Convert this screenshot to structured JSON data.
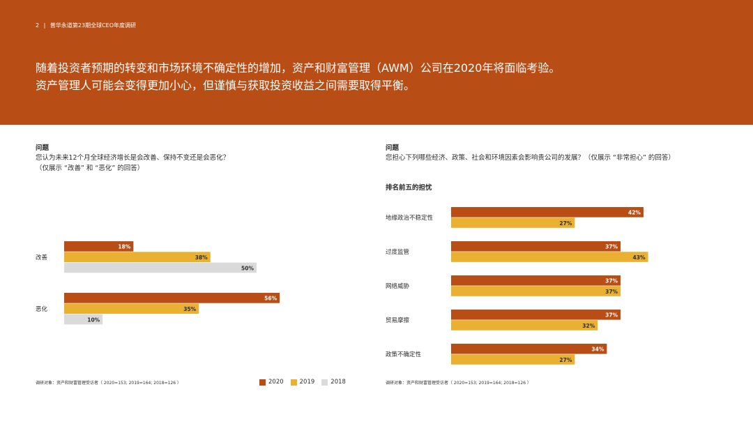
{
  "header": {
    "page_number": "2",
    "separator": "|",
    "report_title": "普华永道第23期全球CEO年度调研",
    "headline_line1": "随着投资者预期的转变和市场环境不确定性的增加，资产和财富管理（AWM）公司在2020年将面临考验。",
    "headline_line2": "资产管理人可能会变得更加小心，但谨慎与获取投资收益之间需要取得平衡。"
  },
  "left_panel": {
    "question_label": "问题",
    "question_line1": "您认为未来12个月全球经济增长是会改善、保持不变还是会恶化？",
    "question_line2": "（仅展示 “改善” 和 “恶化” 的回答）",
    "footnote": "调研对象：资产和财富管理受访者（ 2020=153; 2019=164; 2018=126 ）"
  },
  "right_panel": {
    "question_label": "问题",
    "question_line1": "您担心下列哪些经济、政策、社会和环境因素会影响贵公司的发展？（仅展示 “非常担心” 的回答）",
    "subheading": "排名前五的担忧",
    "footnote": "调研对象：资产和财富管理受访者（ 2020=153; 2019=164; 2018=126 ）"
  },
  "legend": [
    {
      "label": "2020",
      "color": "#b84d15"
    },
    {
      "label": "2019",
      "color": "#e9b032"
    },
    {
      "label": "2018",
      "color": "#dadada"
    }
  ],
  "chart_data": [
    {
      "type": "bar",
      "orientation": "horizontal",
      "categories": [
        "改善",
        "恶化"
      ],
      "series": [
        {
          "name": "2020",
          "values": [
            18,
            56
          ],
          "labels": [
            "18%",
            "56%"
          ],
          "color": "#b84d15"
        },
        {
          "name": "2019",
          "values": [
            38,
            35
          ],
          "labels": [
            "38%",
            "35%"
          ],
          "color": "#e9b032"
        },
        {
          "name": "2018",
          "values": [
            50,
            10
          ],
          "labels": [
            "50%",
            "10%"
          ],
          "color": "#dadada"
        }
      ],
      "xlim": [
        0,
        100
      ],
      "grid": false
    },
    {
      "type": "bar",
      "orientation": "horizontal",
      "title": "排名前五的担忧",
      "categories": [
        "地缘政治不稳定性",
        "过度监管",
        "网络威胁",
        "贸易摩擦",
        "政策不确定性"
      ],
      "series": [
        {
          "name": "2020",
          "values": [
            42,
            37,
            37,
            37,
            34
          ],
          "labels": [
            "42%",
            "37%",
            "37%",
            "37%",
            "34%"
          ],
          "color": "#b84d15"
        },
        {
          "name": "2019",
          "values": [
            27,
            43,
            37,
            32,
            27
          ],
          "labels": [
            "27%",
            "43%",
            "37%",
            "32%",
            "27%"
          ],
          "color": "#e9b032"
        }
      ],
      "xlim": [
        0,
        100
      ],
      "grid": false
    }
  ]
}
